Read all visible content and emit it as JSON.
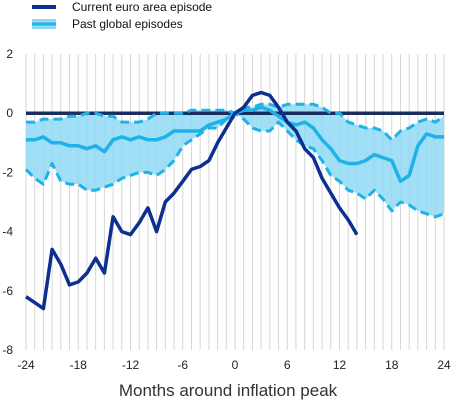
{
  "chart_data": {
    "type": "line",
    "title": "",
    "xlabel": "Months around inflation peak",
    "ylabel": "",
    "xlim": [
      -24,
      24
    ],
    "ylim": [
      -8,
      2
    ],
    "xticks": [
      -24,
      -18,
      -12,
      -6,
      0,
      6,
      12,
      18,
      24
    ],
    "xtick_labels": [
      "-24",
      "-18",
      "-12",
      "-6",
      "0",
      "6",
      "12",
      "18",
      "24"
    ],
    "yticks": [
      2,
      0,
      -2,
      -4,
      -6,
      -8
    ],
    "ytick_labels": [
      "2",
      "0",
      "-2",
      "-4",
      "-6",
      "-8"
    ],
    "grid": "vertical",
    "legend": {
      "position": "top-left",
      "entries": [
        "Current euro area episode",
        "Past global episodes"
      ]
    },
    "colors": {
      "current": "#0d2f8f",
      "past": "#1fb2e8",
      "band": "#8fd9f5",
      "zero_line": "#1a2e5e"
    },
    "x": [
      -24,
      -23,
      -22,
      -21,
      -20,
      -19,
      -18,
      -17,
      -16,
      -15,
      -14,
      -13,
      -12,
      -11,
      -10,
      -9,
      -8,
      -7,
      -6,
      -5,
      -4,
      -3,
      -2,
      -1,
      0,
      1,
      2,
      3,
      4,
      5,
      6,
      7,
      8,
      9,
      10,
      11,
      12,
      13,
      14,
      15,
      16,
      17,
      18,
      19,
      20,
      21,
      22,
      23,
      24
    ],
    "series": [
      {
        "name": "Current euro area episode",
        "style": "solid",
        "values": [
          -6.2,
          -6.4,
          -6.6,
          -4.6,
          -5.1,
          -5.8,
          -5.7,
          -5.4,
          -4.9,
          -5.4,
          -3.5,
          -4.0,
          -4.1,
          -3.7,
          -3.2,
          -4.0,
          -3.0,
          -2.7,
          -2.3,
          -1.9,
          -1.8,
          -1.6,
          -1.0,
          -0.5,
          0.0,
          0.2,
          0.6,
          0.7,
          0.6,
          0.2,
          -0.3,
          -0.6,
          -1.2,
          -1.5,
          -2.2,
          -2.7,
          -3.2,
          -3.6,
          -4.1,
          null,
          null,
          null,
          null,
          null,
          null,
          null,
          null,
          null,
          null
        ]
      },
      {
        "name": "Past global episodes (median)",
        "style": "solid",
        "values": [
          -0.9,
          -0.9,
          -0.8,
          -1.0,
          -1.0,
          -1.1,
          -1.1,
          -1.2,
          -1.1,
          -1.3,
          -0.9,
          -0.8,
          -0.9,
          -0.8,
          -0.9,
          -0.9,
          -0.8,
          -0.6,
          -0.6,
          -0.6,
          -0.6,
          -0.4,
          -0.3,
          -0.2,
          0.0,
          0.1,
          0.1,
          0.2,
          0.1,
          -0.1,
          -0.3,
          -0.4,
          -0.3,
          -0.5,
          -0.9,
          -1.2,
          -1.6,
          -1.7,
          -1.7,
          -1.6,
          -1.4,
          -1.5,
          -1.6,
          -2.3,
          -2.1,
          -1.1,
          -0.7,
          -0.8,
          -0.8
        ]
      },
      {
        "name": "Past global episodes (upper range)",
        "style": "dashed",
        "values": [
          -0.3,
          -0.3,
          -0.2,
          -0.2,
          -0.2,
          -0.1,
          -0.1,
          0.0,
          0.0,
          -0.1,
          -0.1,
          -0.3,
          -0.3,
          -0.3,
          -0.2,
          0.0,
          0.0,
          0.0,
          0.0,
          0.1,
          0.1,
          0.1,
          0.1,
          0.1,
          0.0,
          0.2,
          0.2,
          0.3,
          0.3,
          0.2,
          0.3,
          0.3,
          0.3,
          0.3,
          0.2,
          0.0,
          0.0,
          -0.3,
          -0.4,
          -0.5,
          -0.5,
          -0.6,
          -0.9,
          -0.6,
          -0.5,
          -0.3,
          -0.2,
          -0.3,
          -0.1
        ]
      },
      {
        "name": "Past global episodes (lower range)",
        "style": "dashed",
        "values": [
          -1.9,
          -2.2,
          -2.4,
          -1.7,
          -2.3,
          -2.4,
          -2.4,
          -2.6,
          -2.6,
          -2.5,
          -2.4,
          -2.2,
          -2.1,
          -2.0,
          -2.0,
          -2.1,
          -1.9,
          -1.6,
          -1.1,
          -0.9,
          -0.7,
          -0.5,
          -0.5,
          -0.2,
          0.0,
          -0.2,
          -0.5,
          -0.6,
          -0.6,
          -0.3,
          -0.6,
          -0.9,
          -1.1,
          -1.2,
          -1.6,
          -2.1,
          -2.3,
          -2.6,
          -2.7,
          -2.9,
          -2.6,
          -2.9,
          -3.3,
          -3.0,
          -3.1,
          -3.3,
          -3.4,
          -3.5,
          -3.4
        ]
      }
    ]
  }
}
